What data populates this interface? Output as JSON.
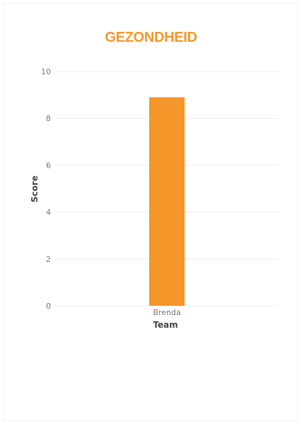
{
  "chart_data": {
    "type": "bar",
    "title": "GEZONDHEID",
    "xlabel": "Team",
    "ylabel": "Score",
    "categories": [
      "Brenda"
    ],
    "values": [
      8.9
    ],
    "ylim": [
      0,
      10
    ],
    "yticks": [
      0,
      2,
      4,
      6,
      8,
      10
    ],
    "grid": true,
    "colors": {
      "bar": "#f5962a",
      "title": "#f5962a"
    }
  }
}
